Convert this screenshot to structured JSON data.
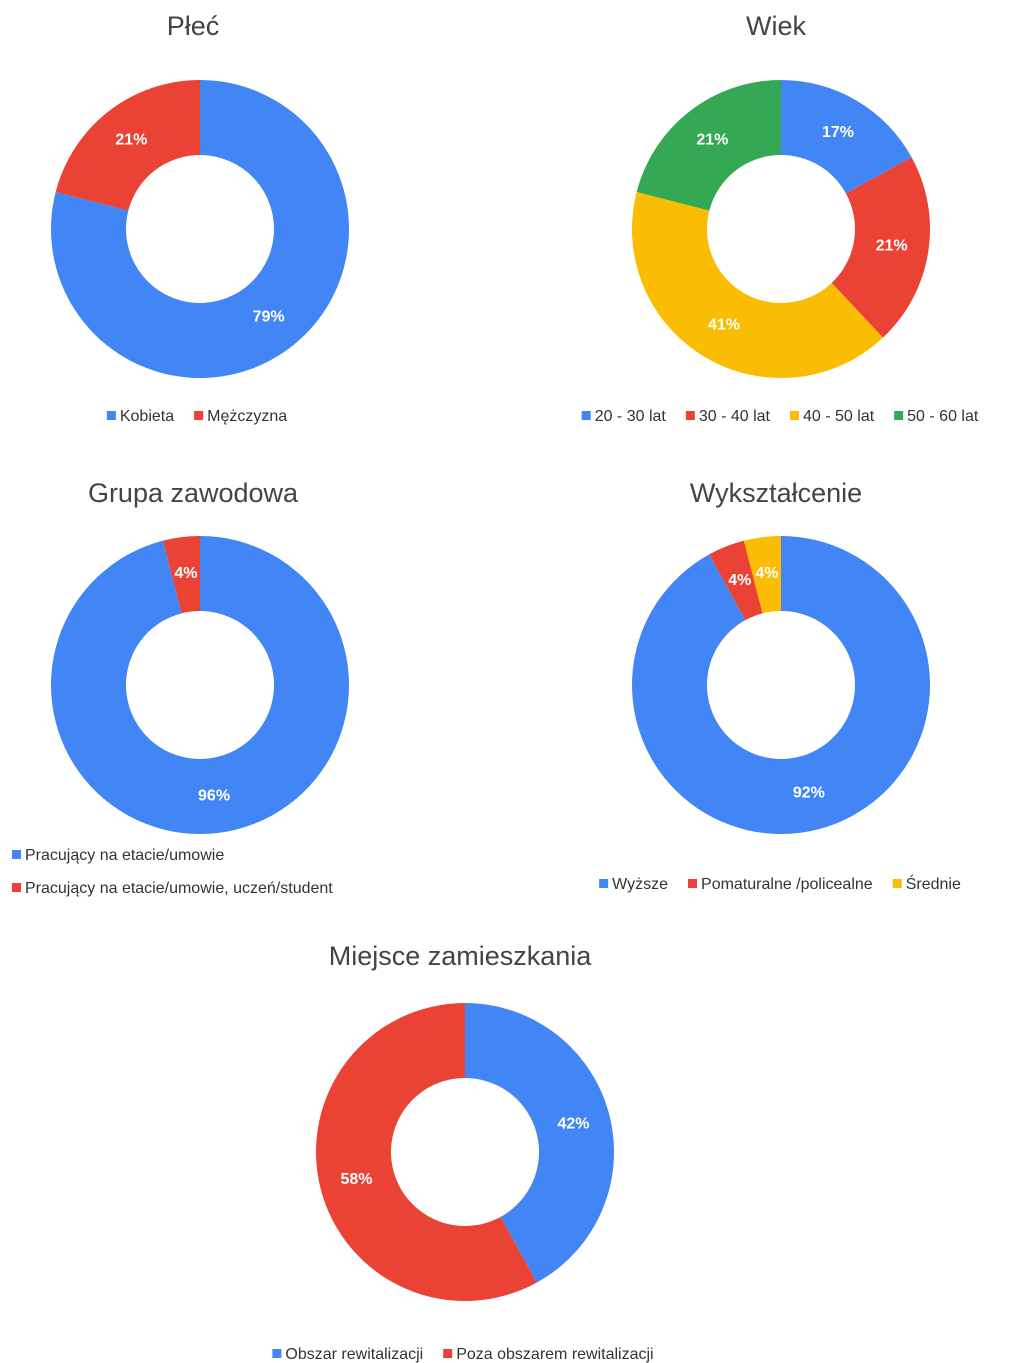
{
  "chart_data": [
    {
      "type": "donut",
      "title": "Płeć",
      "categories": [
        "Kobieta",
        "Mężczyzna"
      ],
      "values": [
        79,
        21
      ],
      "value_labels": [
        "79%",
        "21%"
      ],
      "colors": [
        "#4285f4",
        "#ea4335"
      ]
    },
    {
      "type": "donut",
      "title": "Wiek",
      "categories": [
        "20 - 30 lat",
        "30 - 40  lat",
        "40 - 50 lat",
        "50 - 60 lat"
      ],
      "values": [
        17,
        21,
        41,
        21
      ],
      "value_labels": [
        "17%",
        "21%",
        "41%",
        "21%"
      ],
      "colors": [
        "#4285f4",
        "#ea4335",
        "#fbbc04",
        "#34a853"
      ]
    },
    {
      "type": "donut",
      "title": "Grupa zawodowa",
      "categories": [
        "Pracujący na etacie/umowie",
        "Pracujący na etacie/umowie, uczeń/student"
      ],
      "values": [
        96,
        4
      ],
      "value_labels": [
        "96%",
        "4%"
      ],
      "colors": [
        "#4285f4",
        "#ea4335"
      ]
    },
    {
      "type": "donut",
      "title": "Wykształcenie",
      "categories": [
        "Wyższe",
        "Pomaturalne /policealne",
        "Średnie"
      ],
      "values": [
        92,
        4,
        4
      ],
      "value_labels": [
        "92%",
        "4%",
        "4%"
      ],
      "colors": [
        "#4285f4",
        "#ea4335",
        "#fbbc04"
      ]
    },
    {
      "type": "donut",
      "title": "Miejsce zamieszkania",
      "categories": [
        "Obszar rewitalizacji",
        "Poza obszarem rewitalizacji"
      ],
      "values": [
        42,
        58
      ],
      "value_labels": [
        "42%",
        "58%"
      ],
      "colors": [
        "#4285f4",
        "#ea4335"
      ]
    }
  ]
}
